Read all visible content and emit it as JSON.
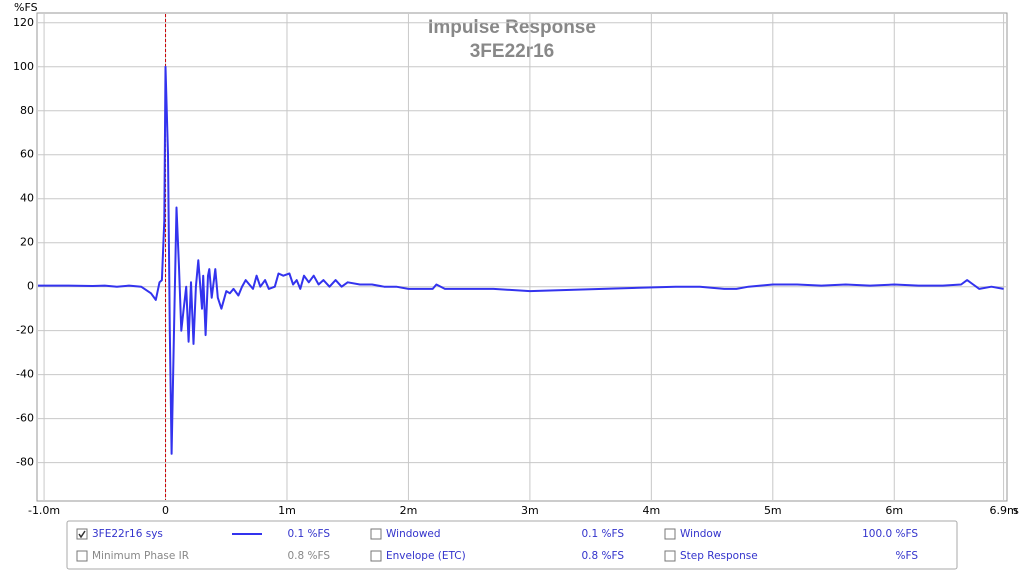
{
  "chart_data": {
    "type": "line",
    "title": "Impulse Response",
    "subtitle": "3FE22r16",
    "x_label": "s",
    "y_label": "%FS",
    "x": [
      -1.05,
      -0.8,
      -0.6,
      -0.5,
      -0.4,
      -0.3,
      -0.2,
      -0.12,
      -0.08,
      -0.05,
      -0.03,
      -0.01,
      0.0,
      0.02,
      0.035,
      0.05,
      0.07,
      0.09,
      0.11,
      0.13,
      0.15,
      0.17,
      0.19,
      0.21,
      0.23,
      0.25,
      0.27,
      0.3,
      0.31,
      0.33,
      0.35,
      0.36,
      0.38,
      0.41,
      0.43,
      0.46,
      0.5,
      0.53,
      0.56,
      0.6,
      0.63,
      0.66,
      0.69,
      0.72,
      0.75,
      0.78,
      0.82,
      0.85,
      0.9,
      0.93,
      0.97,
      1.02,
      1.05,
      1.08,
      1.11,
      1.14,
      1.18,
      1.22,
      1.26,
      1.3,
      1.35,
      1.4,
      1.45,
      1.5,
      1.6,
      1.7,
      1.8,
      1.9,
      2.0,
      2.1,
      2.2,
      2.23,
      2.3,
      2.5,
      2.7,
      3.0,
      3.3,
      3.6,
      3.9,
      4.2,
      4.4,
      4.6,
      4.7,
      4.8,
      5.0,
      5.2,
      5.4,
      5.6,
      5.8,
      6.0,
      6.2,
      6.4,
      6.55,
      6.6,
      6.65,
      6.7,
      6.8,
      6.9
    ],
    "series": [
      {
        "name": "3FE22r16 sys",
        "color": "#3333ee",
        "values": [
          0.5,
          0.5,
          0.3,
          0.5,
          0,
          0.5,
          0,
          -3,
          -6,
          2,
          3,
          30,
          100,
          60,
          -20,
          -76,
          -20,
          36,
          10,
          -20,
          -10,
          0,
          -25,
          2,
          -26,
          0,
          12,
          -10,
          5,
          -22,
          5,
          8,
          -5,
          8,
          -5,
          -10,
          -2,
          -3,
          -1,
          -4,
          0,
          3,
          1,
          -1,
          5,
          0,
          3,
          -1,
          0,
          6,
          5,
          6,
          1,
          3,
          -1,
          5,
          2,
          5,
          1,
          3,
          0,
          3,
          0,
          2,
          1,
          1,
          0,
          0,
          -1,
          -1,
          -1,
          1,
          -1,
          -1,
          -1,
          -2,
          -1.5,
          -1,
          -0.5,
          0,
          0,
          -1,
          -1,
          0,
          1,
          1,
          0.5,
          1,
          0.5,
          1,
          0.5,
          0.5,
          1,
          3,
          1,
          -1,
          0,
          -1
        ]
      }
    ],
    "xlim": [
      -1.05,
      6.92
    ],
    "ylim": [
      -97,
      124
    ],
    "xticks": [
      {
        "value": -1,
        "label": "-1.0m"
      },
      0,
      {
        "value": 1,
        "label": "1m"
      },
      {
        "value": 2,
        "label": "2m"
      },
      {
        "value": 3,
        "label": "3m"
      },
      {
        "value": 4,
        "label": "4m"
      },
      {
        "value": 5,
        "label": "5m"
      },
      {
        "value": 6,
        "label": "6m"
      },
      {
        "value": 6.9,
        "label": "6.9m"
      }
    ],
    "yticks": [
      -80,
      -60,
      -40,
      -20,
      0,
      20,
      40,
      60,
      80,
      100,
      120
    ],
    "grid": true
  },
  "legend_panel": {
    "series_checked": true,
    "series_value": "0.1 %FS",
    "entries": [
      {
        "label": "Windowed",
        "value": "0.1 %FS",
        "checked": false,
        "enabled": true
      },
      {
        "label": "Window",
        "value": "100.0 %FS",
        "checked": false,
        "enabled": true
      },
      {
        "label": "Minimum Phase IR",
        "value": "0.8 %FS",
        "checked": false,
        "enabled": false
      },
      {
        "label": "Envelope (ETC)",
        "value": "0.8 %FS",
        "checked": false,
        "enabled": true
      },
      {
        "label": "Step Response",
        "value": "%FS",
        "checked": false,
        "enabled": true
      }
    ]
  }
}
